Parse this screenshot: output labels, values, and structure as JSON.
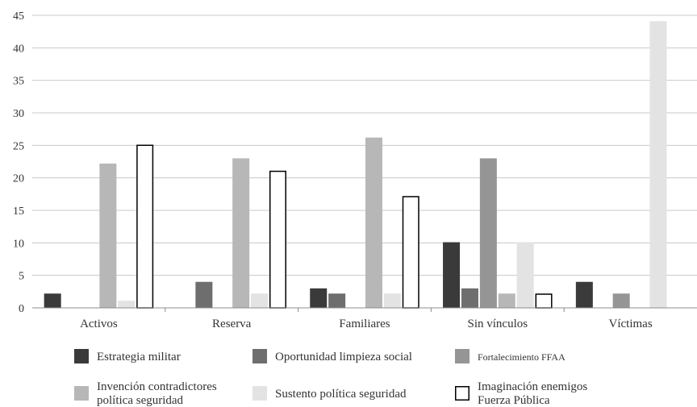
{
  "chart_data": {
    "type": "bar",
    "title": "",
    "xlabel": "",
    "ylabel": "",
    "ylim": [
      0,
      45
    ],
    "yticks": [
      0,
      5,
      10,
      15,
      20,
      25,
      30,
      35,
      40,
      45
    ],
    "grid": true,
    "legend_position": "bottom",
    "categories": [
      "Activos",
      "Reserva",
      "Familiares",
      "Sin vínculos",
      "Víctimas"
    ],
    "series": [
      {
        "name": "Estrategia militar",
        "color": "#3a3a3a",
        "values": [
          2.2,
          0,
          3,
          10.1,
          4
        ]
      },
      {
        "name": "Oportunidad limpieza social",
        "color": "#6e6e6e",
        "values": [
          0,
          4,
          2.2,
          3,
          0
        ]
      },
      {
        "name": "Fortalecimiento FFAA",
        "color": "#959595",
        "values": [
          0,
          0,
          0,
          23,
          2.2
        ]
      },
      {
        "name": "Invención contradictores política seguridad",
        "color": "#b7b7b7",
        "values": [
          22.2,
          23,
          26.2,
          2.2,
          0
        ]
      },
      {
        "name": "Sustento política seguridad",
        "color": "#e3e3e3",
        "values": [
          1.1,
          2.2,
          2.2,
          10.1,
          44.1
        ]
      },
      {
        "name": "Imaginación enemigos Fuerza Pública",
        "color": "#ffffff",
        "outline": "#000000",
        "values": [
          25.1,
          21.1,
          17.2,
          2.2,
          0
        ]
      }
    ],
    "legend_lines": [
      [
        "Estrategia militar"
      ],
      [
        "Oportunidad limpieza social"
      ],
      [
        "Fortalecimiento FFAA"
      ],
      [
        "Invención contradictores",
        "política seguridad"
      ],
      [
        "Sustento política seguridad"
      ],
      [
        "Imaginación enemigos",
        "Fuerza Pública"
      ]
    ]
  }
}
